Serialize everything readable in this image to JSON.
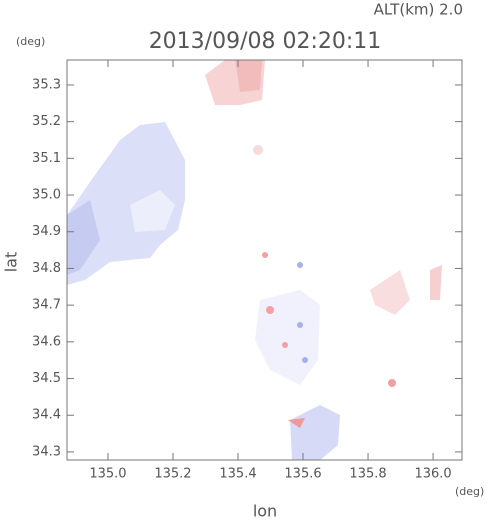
{
  "chart_data": {
    "type": "map",
    "title": "2013/09/08 02:20:11",
    "subtitle": "ALT(km) 2.0",
    "y_unit": "(deg)",
    "x_unit": "(deg)",
    "xlabel": "lon",
    "ylabel": "lat",
    "xlim": [
      134.874,
      136.089
    ],
    "ylim": [
      34.278,
      35.368
    ],
    "xticks": [
      {
        "value": 135,
        "label": "135.0"
      },
      135.2,
      135.4,
      135.6,
      135.8,
      {
        "value": 136,
        "label": "136.0"
      }
    ],
    "yticks": [
      34.3,
      34.4,
      34.5,
      34.6,
      34.7,
      34.8,
      34.9,
      {
        "value": 35,
        "label": "35.0"
      },
      35.1,
      35.2,
      35.3
    ]
  }
}
